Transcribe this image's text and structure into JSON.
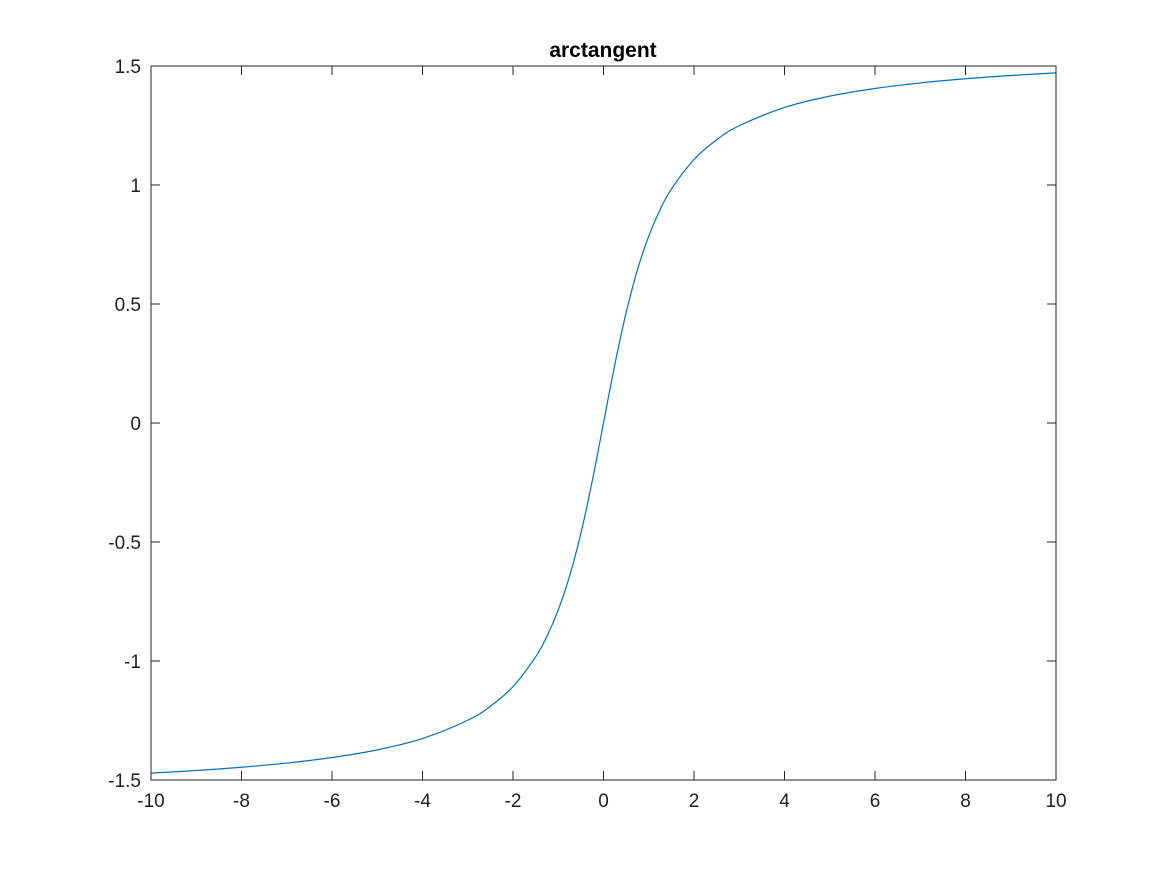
{
  "chart_data": {
    "type": "line",
    "title": "arctangent",
    "xlabel": "",
    "ylabel": "",
    "xlim": [
      -10,
      10
    ],
    "ylim": [
      -1.5,
      1.5
    ],
    "xticks": [
      -10,
      -8,
      -6,
      -4,
      -2,
      0,
      2,
      4,
      6,
      8,
      10
    ],
    "yticks": [
      -1.5,
      -1,
      -0.5,
      0,
      0.5,
      1,
      1.5
    ],
    "xtick_labels": [
      "-10",
      "-8",
      "-6",
      "-4",
      "-2",
      "0",
      "2",
      "4",
      "6",
      "8",
      "10"
    ],
    "ytick_labels": [
      "-1.5",
      "-1",
      "-0.5",
      "0",
      "0.5",
      "1",
      "1.5"
    ],
    "grid": false,
    "legend": "none",
    "series": [
      {
        "color": "#0072BD",
        "x": [
          -10,
          -9,
          -8,
          -7,
          -6,
          -5,
          -4,
          -3,
          -2.5,
          -2,
          -1.5,
          -1.25,
          -1,
          -0.75,
          -0.5,
          -0.25,
          0,
          0.25,
          0.5,
          0.75,
          1,
          1.25,
          1.5,
          2,
          2.5,
          3,
          4,
          5,
          6,
          7,
          8,
          9,
          10
        ],
        "y": [
          -1.4711,
          -1.4601,
          -1.4464,
          -1.4289,
          -1.4056,
          -1.3734,
          -1.3258,
          -1.249,
          -1.1903,
          -1.1071,
          -0.9828,
          -0.8961,
          -0.7854,
          -0.6435,
          -0.4636,
          -0.245,
          0,
          0.245,
          0.4636,
          0.6435,
          0.7854,
          0.8961,
          0.9828,
          1.1071,
          1.1903,
          1.249,
          1.3258,
          1.3734,
          1.4056,
          1.4289,
          1.4464,
          1.4601,
          1.4711
        ]
      }
    ]
  }
}
